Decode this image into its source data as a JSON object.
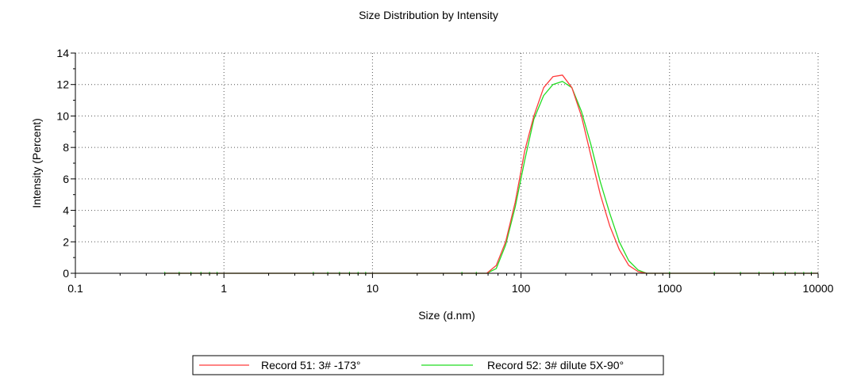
{
  "chart_data": {
    "type": "line",
    "title": "Size Distribution by Intensity",
    "xlabel": "Size (d.nm)",
    "ylabel": "Intensity (Percent)",
    "x_scale": "log",
    "xlim": [
      0.1,
      10000
    ],
    "ylim": [
      0,
      14
    ],
    "x_ticks": [
      0.1,
      1,
      10,
      100,
      1000,
      10000
    ],
    "x_tick_labels": [
      "0.1",
      "1",
      "10",
      "100",
      "1000",
      "10000"
    ],
    "y_ticks": [
      0,
      2,
      4,
      6,
      8,
      10,
      12,
      14
    ],
    "y_tick_labels": [
      "0",
      "2",
      "4",
      "6",
      "8",
      "10",
      "12",
      "14"
    ],
    "grid": true,
    "legend_position": "bottom",
    "series": [
      {
        "name": "Record 51: 3# -173°",
        "color": "#ff3b3b",
        "x": [
          0.4,
          20,
          58.8,
          68.1,
          78.8,
          91.3,
          106,
          122,
          142,
          164,
          190,
          220,
          255,
          295,
          342,
          396,
          459,
          531,
          615,
          700,
          10000
        ],
        "y": [
          0,
          0,
          0,
          0.5,
          2.0,
          4.5,
          7.8,
          10.0,
          11.8,
          12.5,
          12.6,
          11.8,
          10.0,
          7.5,
          5.0,
          3.0,
          1.5,
          0.5,
          0.1,
          0,
          0
        ]
      },
      {
        "name": "Record 52: 3# dilute 5X-90°",
        "color": "#22dd22",
        "x": [
          0.4,
          20,
          58.8,
          68.1,
          78.8,
          91.3,
          106,
          122,
          142,
          164,
          190,
          220,
          255,
          295,
          342,
          396,
          459,
          531,
          615,
          700,
          10000
        ],
        "y": [
          0,
          0,
          0,
          0.3,
          1.8,
          4.2,
          7.2,
          9.8,
          11.3,
          12.0,
          12.2,
          11.8,
          10.3,
          8.2,
          5.8,
          3.8,
          2.0,
          0.8,
          0.2,
          0,
          0
        ]
      }
    ]
  }
}
